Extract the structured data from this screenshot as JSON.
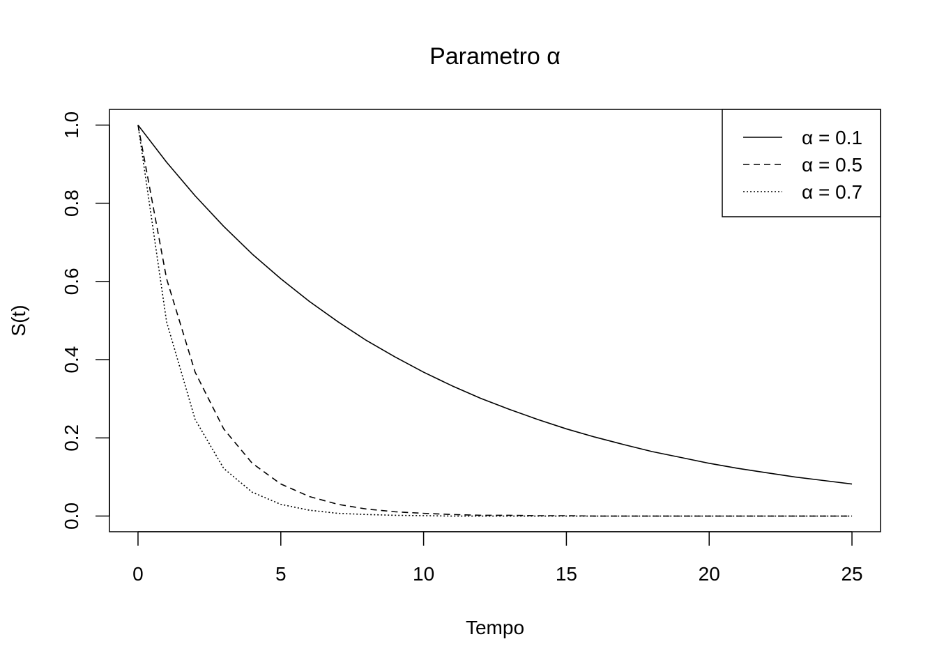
{
  "chart_data": {
    "type": "line",
    "title": "Parametro α",
    "xlabel": "Tempo",
    "ylabel": "S(t)",
    "xlim": [
      -1,
      26
    ],
    "ylim": [
      -0.04,
      1.04
    ],
    "xticks": [
      0,
      5,
      10,
      15,
      20,
      25
    ],
    "yticks": [
      0.0,
      0.2,
      0.4,
      0.6,
      0.8,
      1.0
    ],
    "xtick_labels": [
      "0",
      "5",
      "10",
      "15",
      "20",
      "25"
    ],
    "ytick_labels": [
      "0.0",
      "0.2",
      "0.4",
      "0.6",
      "0.8",
      "1.0"
    ],
    "grid": false,
    "legend_position": "top-right",
    "x": [
      0,
      1,
      2,
      3,
      4,
      5,
      6,
      7,
      8,
      9,
      10,
      11,
      12,
      13,
      14,
      15,
      16,
      17,
      18,
      19,
      20,
      21,
      22,
      23,
      24,
      25
    ],
    "series": [
      {
        "name": "α = 0.1",
        "line_style": "solid",
        "values": [
          1.0,
          0.905,
          0.819,
          0.741,
          0.67,
          0.607,
          0.549,
          0.497,
          0.449,
          0.407,
          0.368,
          0.333,
          0.301,
          0.273,
          0.247,
          0.223,
          0.202,
          0.183,
          0.165,
          0.15,
          0.135,
          0.122,
          0.111,
          0.1,
          0.091,
          0.082
        ]
      },
      {
        "name": "α = 0.5",
        "line_style": "dashed",
        "values": [
          1.0,
          0.607,
          0.368,
          0.223,
          0.135,
          0.082,
          0.05,
          0.03,
          0.018,
          0.011,
          0.007,
          0.004,
          0.002,
          0.002,
          0.001,
          0.001,
          0.0,
          0.0,
          0.0,
          0.0,
          0.0,
          0.0,
          0.0,
          0.0,
          0.0,
          0.0
        ]
      },
      {
        "name": "α = 0.7",
        "line_style": "dotted",
        "values": [
          1.0,
          0.497,
          0.247,
          0.122,
          0.061,
          0.03,
          0.015,
          0.007,
          0.004,
          0.002,
          0.001,
          0.0,
          0.0,
          0.0,
          0.0,
          0.0,
          0.0,
          0.0,
          0.0,
          0.0,
          0.0,
          0.0,
          0.0,
          0.0,
          0.0,
          0.0
        ]
      }
    ]
  }
}
